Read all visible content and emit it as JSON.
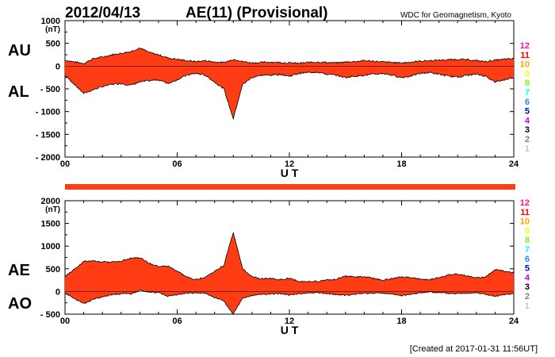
{
  "header": {
    "date": "2012/04/13",
    "title": "AE(11) (Provisional)",
    "source": "WDC for Geomagnetism, Kyoto",
    "footer": "[Created at 2017-01-31 11:56UT]"
  },
  "colors": {
    "fill": "#ff3c14",
    "outline": "#000000",
    "station_bar": "#ff3c14"
  },
  "station_legend": [
    {
      "label": "12",
      "color": "#ff1493"
    },
    {
      "label": "11",
      "color": "#ff0000"
    },
    {
      "label": "10",
      "color": "#ffa500"
    },
    {
      "label": "9",
      "color": "#ffff00"
    },
    {
      "label": "8",
      "color": "#7cfc00"
    },
    {
      "label": "7",
      "color": "#00ffff"
    },
    {
      "label": "6",
      "color": "#1e90ff"
    },
    {
      "label": "5",
      "color": "#0000cd"
    },
    {
      "label": "4",
      "color": "#cc00ff"
    },
    {
      "label": "3",
      "color": "#000000"
    },
    {
      "label": "2",
      "color": "#808080"
    },
    {
      "label": "1",
      "color": "#c8c8c8"
    }
  ],
  "chart_data": [
    {
      "type": "area",
      "title": "AU / AL",
      "upper_label": "AU",
      "lower_label": "AL",
      "unit": "(nT)",
      "xlabel": "U T",
      "xlim": [
        0,
        24
      ],
      "xticks": [
        0,
        6,
        12,
        18,
        24
      ],
      "xtick_labels": [
        "00",
        "06",
        "12",
        "18",
        "24"
      ],
      "ylim": [
        -2000,
        1000
      ],
      "yticks": [
        1000,
        500,
        0,
        -500,
        -1000,
        -1500,
        -2000
      ],
      "ytick_labels": [
        "1000",
        "500",
        "0",
        "- 500",
        "- 1000",
        "- 1500",
        "- 2000"
      ],
      "x": [
        0,
        0.5,
        1,
        1.5,
        2,
        2.5,
        3,
        3.5,
        4,
        4.5,
        5,
        5.5,
        6,
        6.5,
        7,
        7.5,
        8,
        8.5,
        8.8,
        9,
        9.3,
        9.5,
        10,
        10.5,
        11,
        11.5,
        12,
        12.5,
        13,
        13.5,
        14,
        14.5,
        15,
        15.5,
        16,
        16.5,
        17,
        17.5,
        18,
        18.5,
        19,
        19.5,
        20,
        20.5,
        21,
        21.5,
        22,
        22.5,
        23,
        23.5,
        24
      ],
      "series": [
        {
          "name": "AU",
          "values": [
            130,
            90,
            60,
            160,
            200,
            250,
            280,
            320,
            400,
            300,
            250,
            180,
            150,
            120,
            100,
            120,
            90,
            80,
            120,
            150,
            130,
            100,
            70,
            80,
            90,
            80,
            70,
            60,
            80,
            90,
            80,
            70,
            90,
            100,
            120,
            110,
            90,
            80,
            70,
            90,
            110,
            120,
            130,
            140,
            150,
            140,
            120,
            100,
            130,
            150,
            160
          ]
        },
        {
          "name": "AL",
          "values": [
            -200,
            -400,
            -600,
            -520,
            -450,
            -400,
            -380,
            -420,
            -350,
            -320,
            -300,
            -380,
            -300,
            -200,
            -160,
            -200,
            -350,
            -500,
            -900,
            -1150,
            -700,
            -400,
            -250,
            -200,
            -200,
            -180,
            -220,
            -160,
            -140,
            -130,
            -180,
            -200,
            -250,
            -220,
            -200,
            -180,
            -160,
            -200,
            -250,
            -220,
            -160,
            -140,
            -180,
            -220,
            -240,
            -200,
            -180,
            -220,
            -350,
            -300,
            -250
          ]
        }
      ]
    },
    {
      "type": "area",
      "title": "AE / AO",
      "upper_label": "AE",
      "lower_label": "AO",
      "unit": "(nT)",
      "xlabel": "U T",
      "xlim": [
        0,
        24
      ],
      "xticks": [
        0,
        6,
        12,
        18,
        24
      ],
      "xtick_labels": [
        "00",
        "06",
        "12",
        "18",
        "24"
      ],
      "ylim": [
        -500,
        2000
      ],
      "yticks": [
        2000,
        1500,
        1000,
        500,
        0,
        -500
      ],
      "ytick_labels": [
        "2000",
        "1500",
        "1000",
        "500",
        "0",
        "- 500"
      ],
      "x": [
        0,
        0.5,
        1,
        1.5,
        2,
        2.5,
        3,
        3.5,
        4,
        4.5,
        5,
        5.5,
        6,
        6.5,
        7,
        7.5,
        8,
        8.5,
        8.8,
        9,
        9.3,
        9.5,
        10,
        10.5,
        11,
        11.5,
        12,
        12.5,
        13,
        13.5,
        14,
        14.5,
        15,
        15.5,
        16,
        16.5,
        17,
        17.5,
        18,
        18.5,
        19,
        19.5,
        20,
        20.5,
        21,
        21.5,
        22,
        22.5,
        23,
        23.5,
        24
      ],
      "series": [
        {
          "name": "AE",
          "values": [
            330,
            490,
            660,
            680,
            650,
            650,
            660,
            740,
            750,
            620,
            550,
            560,
            450,
            320,
            260,
            320,
            440,
            580,
            1020,
            1300,
            830,
            500,
            320,
            280,
            290,
            260,
            290,
            220,
            220,
            220,
            260,
            270,
            340,
            320,
            320,
            290,
            250,
            280,
            320,
            310,
            270,
            260,
            310,
            360,
            390,
            340,
            300,
            320,
            480,
            450,
            410
          ]
        },
        {
          "name": "AO",
          "values": [
            -30,
            -150,
            -270,
            -180,
            -120,
            -75,
            -50,
            -50,
            25,
            -10,
            -25,
            -100,
            -75,
            -40,
            -30,
            -40,
            -130,
            -210,
            -390,
            -500,
            -285,
            -150,
            -90,
            -60,
            -55,
            -50,
            -75,
            -50,
            -30,
            -20,
            -50,
            -65,
            -80,
            -60,
            -40,
            -35,
            -35,
            -60,
            -90,
            -65,
            -25,
            -10,
            -25,
            -40,
            -45,
            -30,
            -30,
            -60,
            -110,
            -75,
            -45
          ]
        }
      ]
    }
  ]
}
